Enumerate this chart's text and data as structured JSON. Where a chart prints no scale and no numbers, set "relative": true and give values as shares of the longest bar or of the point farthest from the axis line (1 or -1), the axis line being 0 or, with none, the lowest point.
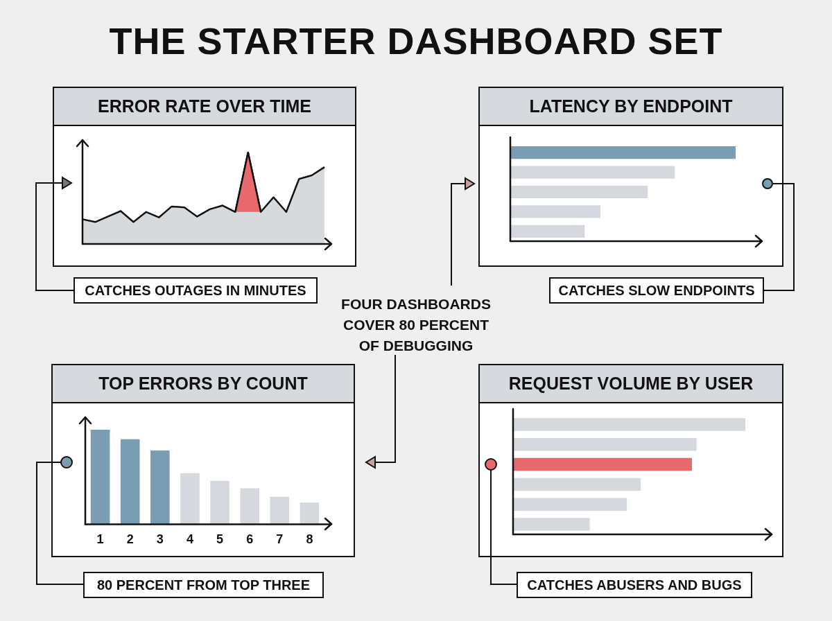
{
  "chart_data": [
    {
      "type": "other",
      "title": "THE STARTER DASHBOARD SET",
      "annotations": [
        "FOUR DASHBOARDS COVER 80 PERCENT OF DEBUGGING"
      ]
    },
    {
      "type": "area",
      "title": "ERROR RATE OVER TIME",
      "relative": true,
      "marker": "none",
      "annotations": [
        "CATCHES OUTAGES IN MINUTES"
      ],
      "categories": [
        null,
        null,
        null,
        null,
        null,
        null,
        null,
        null,
        null,
        null,
        null,
        null,
        null,
        null,
        null,
        null,
        null,
        null,
        null,
        null
      ],
      "series": [
        {
          "type": "area",
          "color": "#d7dadd",
          "values": [
            0.27,
            0.24,
            0.3,
            0.36,
            0.24,
            0.35,
            0.29,
            0.41,
            0.4,
            0.3,
            0.38,
            0.42,
            0.35,
            1,
            0.35,
            0.51,
            0.35,
            0.71,
            0.75,
            0.84
          ]
        },
        {
          "type": "area",
          "color": "#e8696b",
          "values": [
            null,
            null,
            null,
            null,
            null,
            null,
            null,
            null,
            null,
            null,
            null,
            null,
            0.35,
            1,
            0.35,
            null,
            null,
            null,
            null,
            null
          ]
        }
      ]
    },
    {
      "type": "bar",
      "title": "LATENCY BY ENDPOINT",
      "orientation": "horizontal",
      "relative": true,
      "annotations": [
        "CATCHES SLOW ENDPOINTS"
      ],
      "categories": [
        null,
        null,
        null,
        null,
        null
      ],
      "values": [
        1,
        0.73,
        0.61,
        0.4,
        0.33
      ],
      "colors": [
        "#7b9db4",
        "#d5d8dc",
        "#d5d8dc",
        "#d5d8dc",
        "#d5d8dc"
      ]
    },
    {
      "type": "bar",
      "title": "TOP ERRORS BY COUNT",
      "relative": true,
      "annotations": [
        "80 PERCENT FROM TOP THREE"
      ],
      "categories": [
        "1",
        "2",
        "3",
        "4",
        "5",
        "6",
        "7",
        "8"
      ],
      "values": [
        1,
        0.9,
        0.78,
        0.54,
        0.46,
        0.38,
        0.29,
        0.23
      ],
      "colors": [
        "#7b9db4",
        "#7b9db4",
        "#7b9db4",
        "#d5d8dc",
        "#d5d8dc",
        "#d5d8dc",
        "#d5d8dc",
        "#d5d8dc"
      ]
    },
    {
      "type": "bar",
      "title": "REQUEST VOLUME BY USER",
      "orientation": "horizontal",
      "relative": true,
      "annotations": [
        "CATCHES ABUSERS AND BUGS"
      ],
      "categories": [
        null,
        null,
        null,
        null,
        null,
        null
      ],
      "values": [
        1,
        0.79,
        0.77,
        0.55,
        0.49,
        0.33
      ],
      "colors": [
        "#d5d8dc",
        "#d5d8dc",
        "#e8696b",
        "#d5d8dc",
        "#d5d8dc",
        "#d5d8dc"
      ]
    }
  ]
}
